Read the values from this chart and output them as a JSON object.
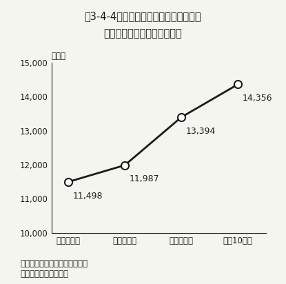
{
  "title_line1": "第3-4-4図　国立大学における研究者の",
  "title_line2": "海外派遣数の推移（延人数）",
  "xlabel_unit": "（人）",
  "x_labels": [
    "平成７年度",
    "平成８年度",
    "平成９年度",
    "平成10年度"
  ],
  "y_values": [
    11498,
    11987,
    13394,
    14356
  ],
  "y_labels": [
    "11,498",
    "11,987",
    "13,394",
    "14,356"
  ],
  "ylim_min": 10000,
  "ylim_max": 15000,
  "yticks": [
    10000,
    11000,
    12000,
    13000,
    14000,
    15000
  ],
  "ytick_labels": [
    "10,000",
    "11,000",
    "12,000",
    "13,000",
    "14,000",
    "15,000"
  ],
  "line_color": "#1a1a1a",
  "marker_style": "o",
  "marker_facecolor": "#ffffff",
  "marker_edgecolor": "#1a1a1a",
  "marker_size": 8,
  "marker_linewidth": 1.5,
  "line_width": 2.0,
  "note_line1": "注）一部暦年での集計を含む。",
  "note_line2": "資料：文部科学省調べ",
  "bg_color": "#f5f5f0"
}
